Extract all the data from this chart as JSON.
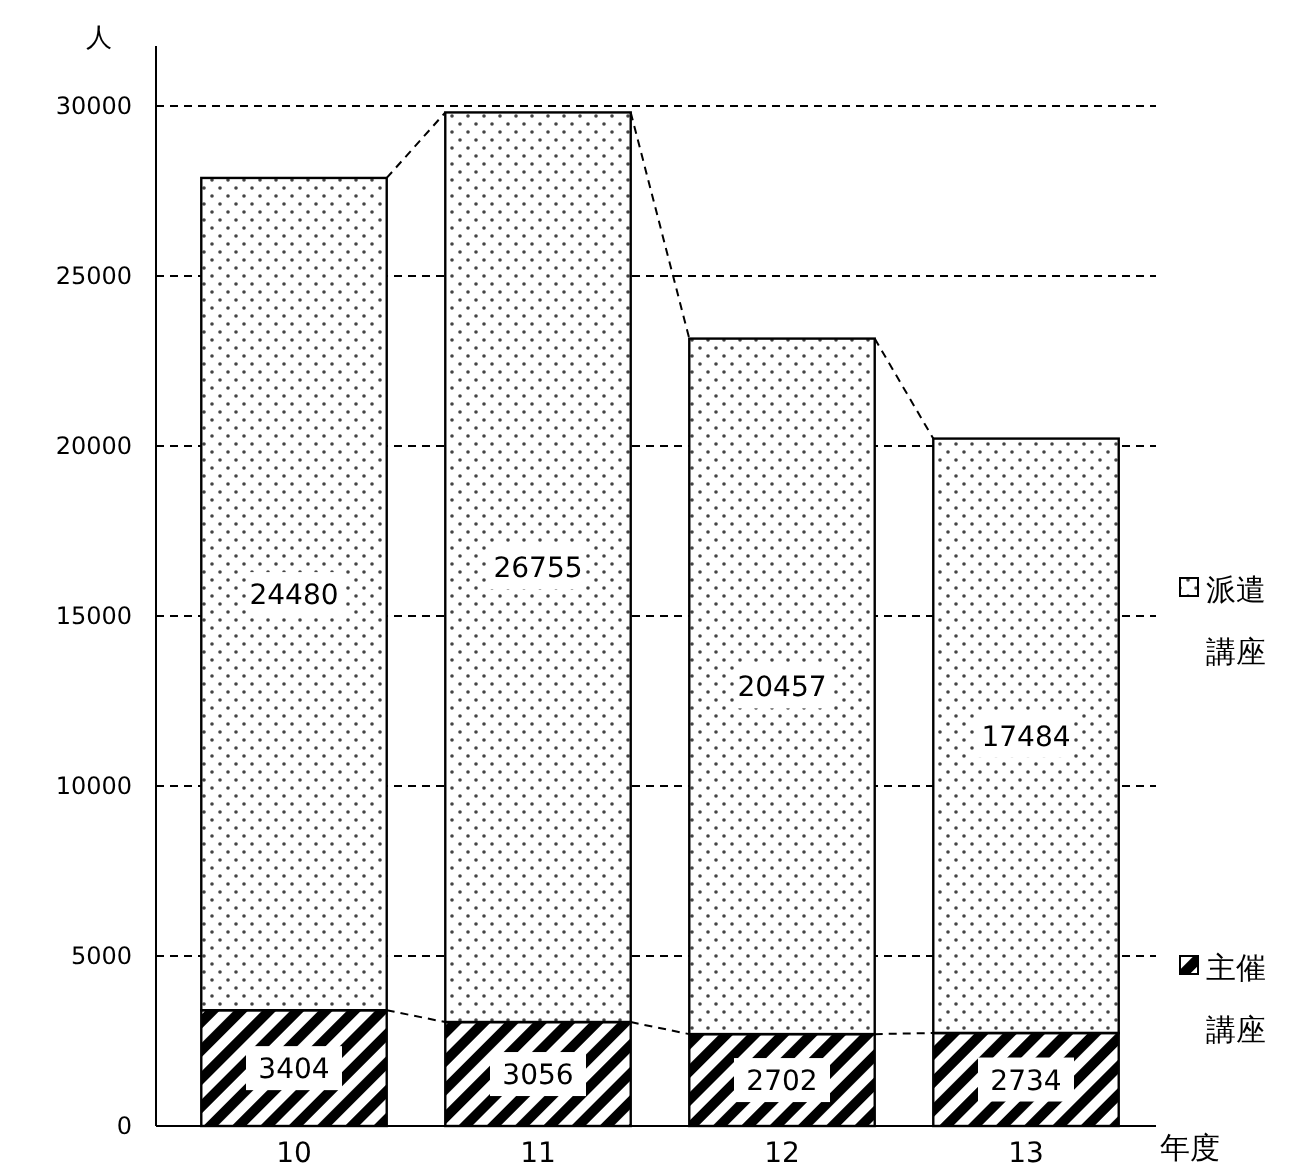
{
  "chart_data": {
    "type": "bar",
    "stacked": true,
    "categories": [
      "10",
      "11",
      "12",
      "13"
    ],
    "series": [
      {
        "name": "主催講座",
        "color": "#000000",
        "values": [
          3404,
          3056,
          2702,
          2734
        ]
      },
      {
        "name": "派遣講座",
        "color": "#ffffff",
        "values": [
          24480,
          26755,
          20457,
          17484
        ]
      }
    ],
    "ylim": [
      0,
      30000
    ],
    "yticks": [
      0,
      5000,
      10000,
      15000,
      20000,
      25000,
      30000
    ],
    "ylabel": "人",
    "xlabel": "年度",
    "grid": "y",
    "legend": "right",
    "data_labels": true
  }
}
